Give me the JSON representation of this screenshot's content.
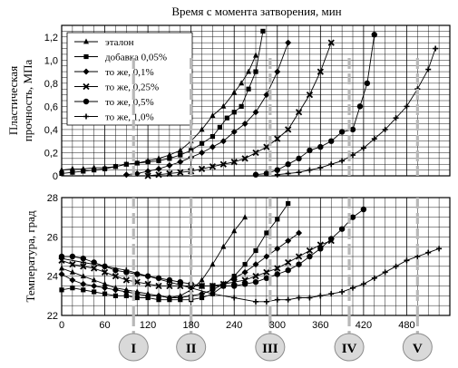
{
  "chart_data": {
    "type": "line",
    "title": "Время с момента затворения, мин",
    "x_ticks": [
      0,
      60,
      120,
      180,
      240,
      300,
      360,
      420,
      480
    ],
    "xlim": [
      0,
      540
    ],
    "panels": [
      {
        "id": "strength",
        "ylabel_line1": "Пластическая",
        "ylabel_line2": "прочность, МПа",
        "ylim": [
          0,
          1.3
        ],
        "y_ticks": [
          "0",
          "0,2",
          "0,4",
          "0,6",
          "0,8",
          "1,0",
          "1,2"
        ],
        "y_tick_values": [
          0,
          0.2,
          0.4,
          0.6,
          0.8,
          1.0,
          1.2
        ],
        "series": [
          {
            "name": "эталон",
            "marker": "triangle",
            "x": [
              0,
              15,
              30,
              45,
              60,
              75,
              90,
              105,
              120,
              135,
              150,
              165,
              180,
              195,
              210,
              225,
              240,
              250,
              260,
              270
            ],
            "y": [
              0.05,
              0.06,
              0.06,
              0.07,
              0.07,
              0.08,
              0.1,
              0.11,
              0.13,
              0.15,
              0.18,
              0.22,
              0.3,
              0.4,
              0.52,
              0.6,
              0.72,
              0.8,
              0.9,
              1.04
            ]
          },
          {
            "name": "добавка 0,05%",
            "marker": "square",
            "x": [
              0,
              15,
              30,
              45,
              60,
              75,
              90,
              105,
              120,
              135,
              150,
              165,
              180,
              195,
              210,
              220,
              230,
              240,
              250,
              260,
              270,
              280
            ],
            "y": [
              0.02,
              0.03,
              0.04,
              0.05,
              0.06,
              0.08,
              0.1,
              0.11,
              0.12,
              0.13,
              0.15,
              0.18,
              0.22,
              0.28,
              0.34,
              0.42,
              0.5,
              0.55,
              0.6,
              0.75,
              0.9,
              1.25
            ]
          },
          {
            "name": "то же, 0,1%",
            "marker": "diamond",
            "x": [
              90,
              105,
              120,
              135,
              150,
              165,
              180,
              195,
              210,
              225,
              240,
              255,
              270,
              285,
              300,
              315
            ],
            "y": [
              0.01,
              0.02,
              0.04,
              0.06,
              0.09,
              0.12,
              0.16,
              0.2,
              0.25,
              0.3,
              0.38,
              0.45,
              0.55,
              0.7,
              0.9,
              1.15
            ]
          },
          {
            "name": "то же, 0,25%",
            "marker": "x",
            "x": [
              120,
              135,
              150,
              165,
              180,
              195,
              210,
              225,
              240,
              255,
              270,
              285,
              300,
              315,
              330,
              345,
              360,
              375
            ],
            "y": [
              0.0,
              0.01,
              0.02,
              0.03,
              0.04,
              0.06,
              0.08,
              0.1,
              0.12,
              0.15,
              0.2,
              0.25,
              0.32,
              0.4,
              0.55,
              0.7,
              0.9,
              1.15
            ]
          },
          {
            "name": "то же, 0,5%",
            "marker": "circle",
            "x": [
              270,
              285,
              300,
              315,
              330,
              345,
              360,
              375,
              390,
              405,
              415,
              425,
              435
            ],
            "y": [
              0.01,
              0.02,
              0.05,
              0.1,
              0.15,
              0.22,
              0.25,
              0.3,
              0.38,
              0.4,
              0.6,
              0.8,
              1.22
            ]
          },
          {
            "name": "то же, 1,0%",
            "marker": "plus",
            "x": [
              300,
              315,
              330,
              345,
              360,
              375,
              390,
              405,
              420,
              435,
              450,
              465,
              480,
              495,
              510,
              520
            ],
            "y": [
              0.01,
              0.02,
              0.03,
              0.05,
              0.07,
              0.1,
              0.13,
              0.18,
              0.24,
              0.32,
              0.4,
              0.5,
              0.6,
              0.75,
              0.92,
              1.1
            ]
          }
        ]
      },
      {
        "id": "temperature",
        "ylabel_line1": "Температура, град",
        "ylim": [
          22,
          28
        ],
        "y_ticks": [
          "22",
          "24",
          "26",
          "28"
        ],
        "y_tick_values": [
          22,
          24,
          26,
          28
        ],
        "series": [
          {
            "name": "эталон",
            "marker": "triangle",
            "x": [
              0,
              15,
              30,
              45,
              60,
              75,
              90,
              105,
              120,
              135,
              150,
              165,
              180,
              195,
              210,
              225,
              240,
              255
            ],
            "y": [
              24.4,
              24.2,
              24.0,
              23.8,
              23.6,
              23.4,
              23.3,
              23.2,
              23.1,
              23.0,
              22.9,
              23.0,
              23.3,
              23.8,
              24.6,
              25.5,
              26.3,
              27.0
            ]
          },
          {
            "name": "добавка 0,05%",
            "marker": "square",
            "x": [
              0,
              15,
              30,
              45,
              60,
              75,
              90,
              105,
              120,
              135,
              150,
              165,
              180,
              195,
              210,
              225,
              240,
              255,
              270,
              285,
              300,
              315
            ],
            "y": [
              23.3,
              23.4,
              23.3,
              23.2,
              23.1,
              23.0,
              23.0,
              22.9,
              22.9,
              22.8,
              22.8,
              22.8,
              22.8,
              22.9,
              23.1,
              23.5,
              24.0,
              24.6,
              25.3,
              26.2,
              26.9,
              27.7
            ]
          },
          {
            "name": "то же, 0,1%",
            "marker": "diamond",
            "x": [
              0,
              15,
              30,
              45,
              60,
              75,
              90,
              105,
              120,
              135,
              150,
              165,
              180,
              195,
              210,
              225,
              240,
              255,
              270,
              285,
              300,
              315,
              330
            ],
            "y": [
              24.1,
              23.8,
              23.6,
              23.5,
              23.4,
              23.3,
              23.2,
              23.1,
              23.0,
              23.0,
              22.9,
              22.9,
              23.0,
              23.1,
              23.3,
              23.6,
              23.9,
              24.2,
              24.6,
              25.0,
              25.4,
              25.8,
              26.2
            ]
          },
          {
            "name": "то же, 0,25%",
            "marker": "x",
            "x": [
              0,
              15,
              30,
              45,
              60,
              75,
              90,
              105,
              120,
              135,
              150,
              165,
              180,
              195,
              210,
              225,
              240,
              255,
              270,
              285,
              300,
              315,
              330,
              345,
              360,
              375
            ],
            "y": [
              24.8,
              24.6,
              24.5,
              24.4,
              24.2,
              24.0,
              23.8,
              23.7,
              23.6,
              23.5,
              23.5,
              23.5,
              23.5,
              23.5,
              23.5,
              23.6,
              23.7,
              23.8,
              24.0,
              24.2,
              24.4,
              24.7,
              25.0,
              25.3,
              25.6,
              25.8
            ]
          },
          {
            "name": "то же, 0,5%",
            "marker": "circle",
            "x": [
              0,
              15,
              30,
              45,
              60,
              75,
              90,
              105,
              120,
              135,
              150,
              165,
              180,
              195,
              210,
              225,
              240,
              255,
              270,
              285,
              300,
              315,
              330,
              345,
              360,
              375,
              390,
              405,
              420
            ],
            "y": [
              25.0,
              25.0,
              24.9,
              24.7,
              24.5,
              24.3,
              24.2,
              24.1,
              24.0,
              23.9,
              23.8,
              23.7,
              23.6,
              23.5,
              23.5,
              23.5,
              23.5,
              23.6,
              23.7,
              23.9,
              24.1,
              24.3,
              24.6,
              25.0,
              25.4,
              25.9,
              26.4,
              27.0,
              27.4
            ]
          },
          {
            "name": "то же, 1,0%",
            "marker": "plus",
            "x": [
              0,
              30,
              60,
              90,
              120,
              150,
              180,
              210,
              240,
              270,
              285,
              300,
              315,
              330,
              345,
              360,
              375,
              390,
              405,
              420,
              435,
              450,
              465,
              480,
              495,
              510,
              525
            ],
            "y": [
              24.9,
              24.7,
              24.5,
              24.3,
              24.0,
              23.7,
              23.4,
              23.1,
              22.9,
              22.7,
              22.7,
              22.8,
              22.8,
              22.9,
              22.9,
              23.0,
              23.1,
              23.2,
              23.4,
              23.6,
              23.9,
              24.2,
              24.5,
              24.8,
              25.0,
              25.2,
              25.4
            ]
          }
        ]
      }
    ],
    "markers_dashed": [
      {
        "label": "I",
        "x": 100
      },
      {
        "label": "II",
        "x": 180
      },
      {
        "label": "III",
        "x": 290
      },
      {
        "label": "IV",
        "x": 400
      },
      {
        "label": "V",
        "x": 495
      }
    ],
    "dashed_color": "#b8b8b8",
    "grid": true,
    "legend_position": "top-left"
  }
}
